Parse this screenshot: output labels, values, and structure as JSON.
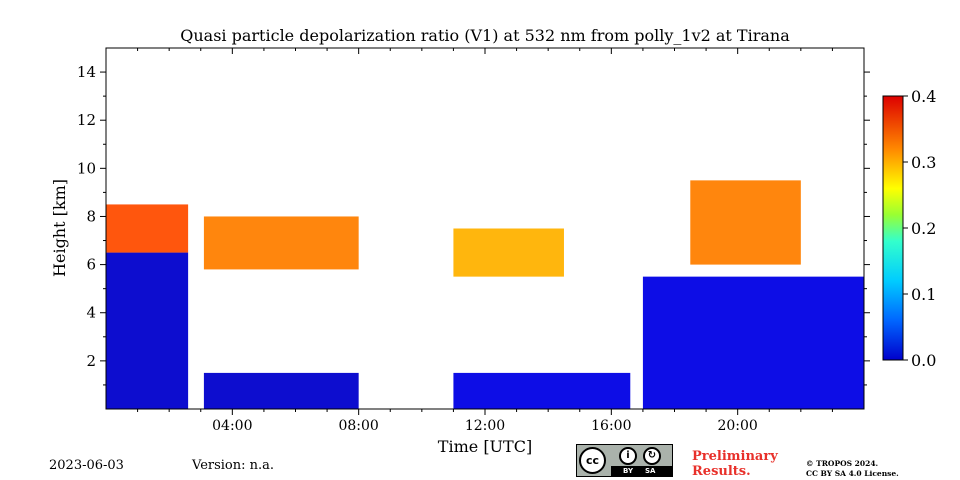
{
  "chart_data": {
    "type": "heatmap",
    "title": "Quasi particle depolarization ratio (V1) at 532 nm from polly_1v2 at Tirana",
    "xlabel": "Time [UTC]",
    "ylabel": "Height [km]",
    "xlim": [
      0,
      24
    ],
    "ylim": [
      0,
      15
    ],
    "x_ticks": [
      4,
      8,
      12,
      16,
      20
    ],
    "x_tick_labels": [
      "04:00",
      "08:00",
      "12:00",
      "16:00",
      "20:00"
    ],
    "y_ticks": [
      2,
      4,
      6,
      8,
      10,
      12,
      14
    ],
    "y_tick_labels": [
      "2",
      "4",
      "6",
      "8",
      "10",
      "12",
      "14"
    ],
    "colorbar": {
      "min": 0.0,
      "max": 0.4,
      "ticks": [
        0.0,
        0.1,
        0.2,
        0.3,
        0.4
      ],
      "tick_labels": [
        "0.0",
        "0.1",
        "0.2",
        "0.3",
        "0.4"
      ],
      "colormap": "jet"
    },
    "no_data_intervals_utc": [
      [
        8.0,
        11.0
      ]
    ],
    "cloud_color": "#000000",
    "layers": [
      {
        "start": 0.0,
        "end": 2.6,
        "bottom_km": 0.0,
        "top_km": 6.5,
        "value": 0.03
      },
      {
        "start": 0.0,
        "end": 2.6,
        "bottom_km": 6.5,
        "top_km": 8.5,
        "value": 0.32
      },
      {
        "start": 3.1,
        "end": 8.0,
        "bottom_km": 0.0,
        "top_km": 1.5,
        "value": 0.03
      },
      {
        "start": 3.1,
        "end": 8.0,
        "bottom_km": 5.8,
        "top_km": 8.0,
        "value": 0.3
      },
      {
        "start": 11.0,
        "end": 16.6,
        "bottom_km": 0.0,
        "top_km": 1.5,
        "value": 0.04
      },
      {
        "start": 11.0,
        "end": 14.5,
        "bottom_km": 5.5,
        "top_km": 7.5,
        "value": 0.28
      },
      {
        "start": 17.0,
        "end": 24.0,
        "bottom_km": 0.0,
        "top_km": 5.5,
        "value": 0.04
      },
      {
        "start": 18.5,
        "end": 22.0,
        "bottom_km": 6.0,
        "top_km": 9.5,
        "value": 0.3
      }
    ]
  },
  "footer": {
    "date": "2023-06-03",
    "version_label": "Version: n.a.",
    "preliminary": "Preliminary\nResults.",
    "copyright": "© TROPOS 2024.\nCC BY SA 4.0 License.",
    "license_badge": {
      "cc": "cc",
      "by": "BY",
      "sa": "SA"
    }
  }
}
